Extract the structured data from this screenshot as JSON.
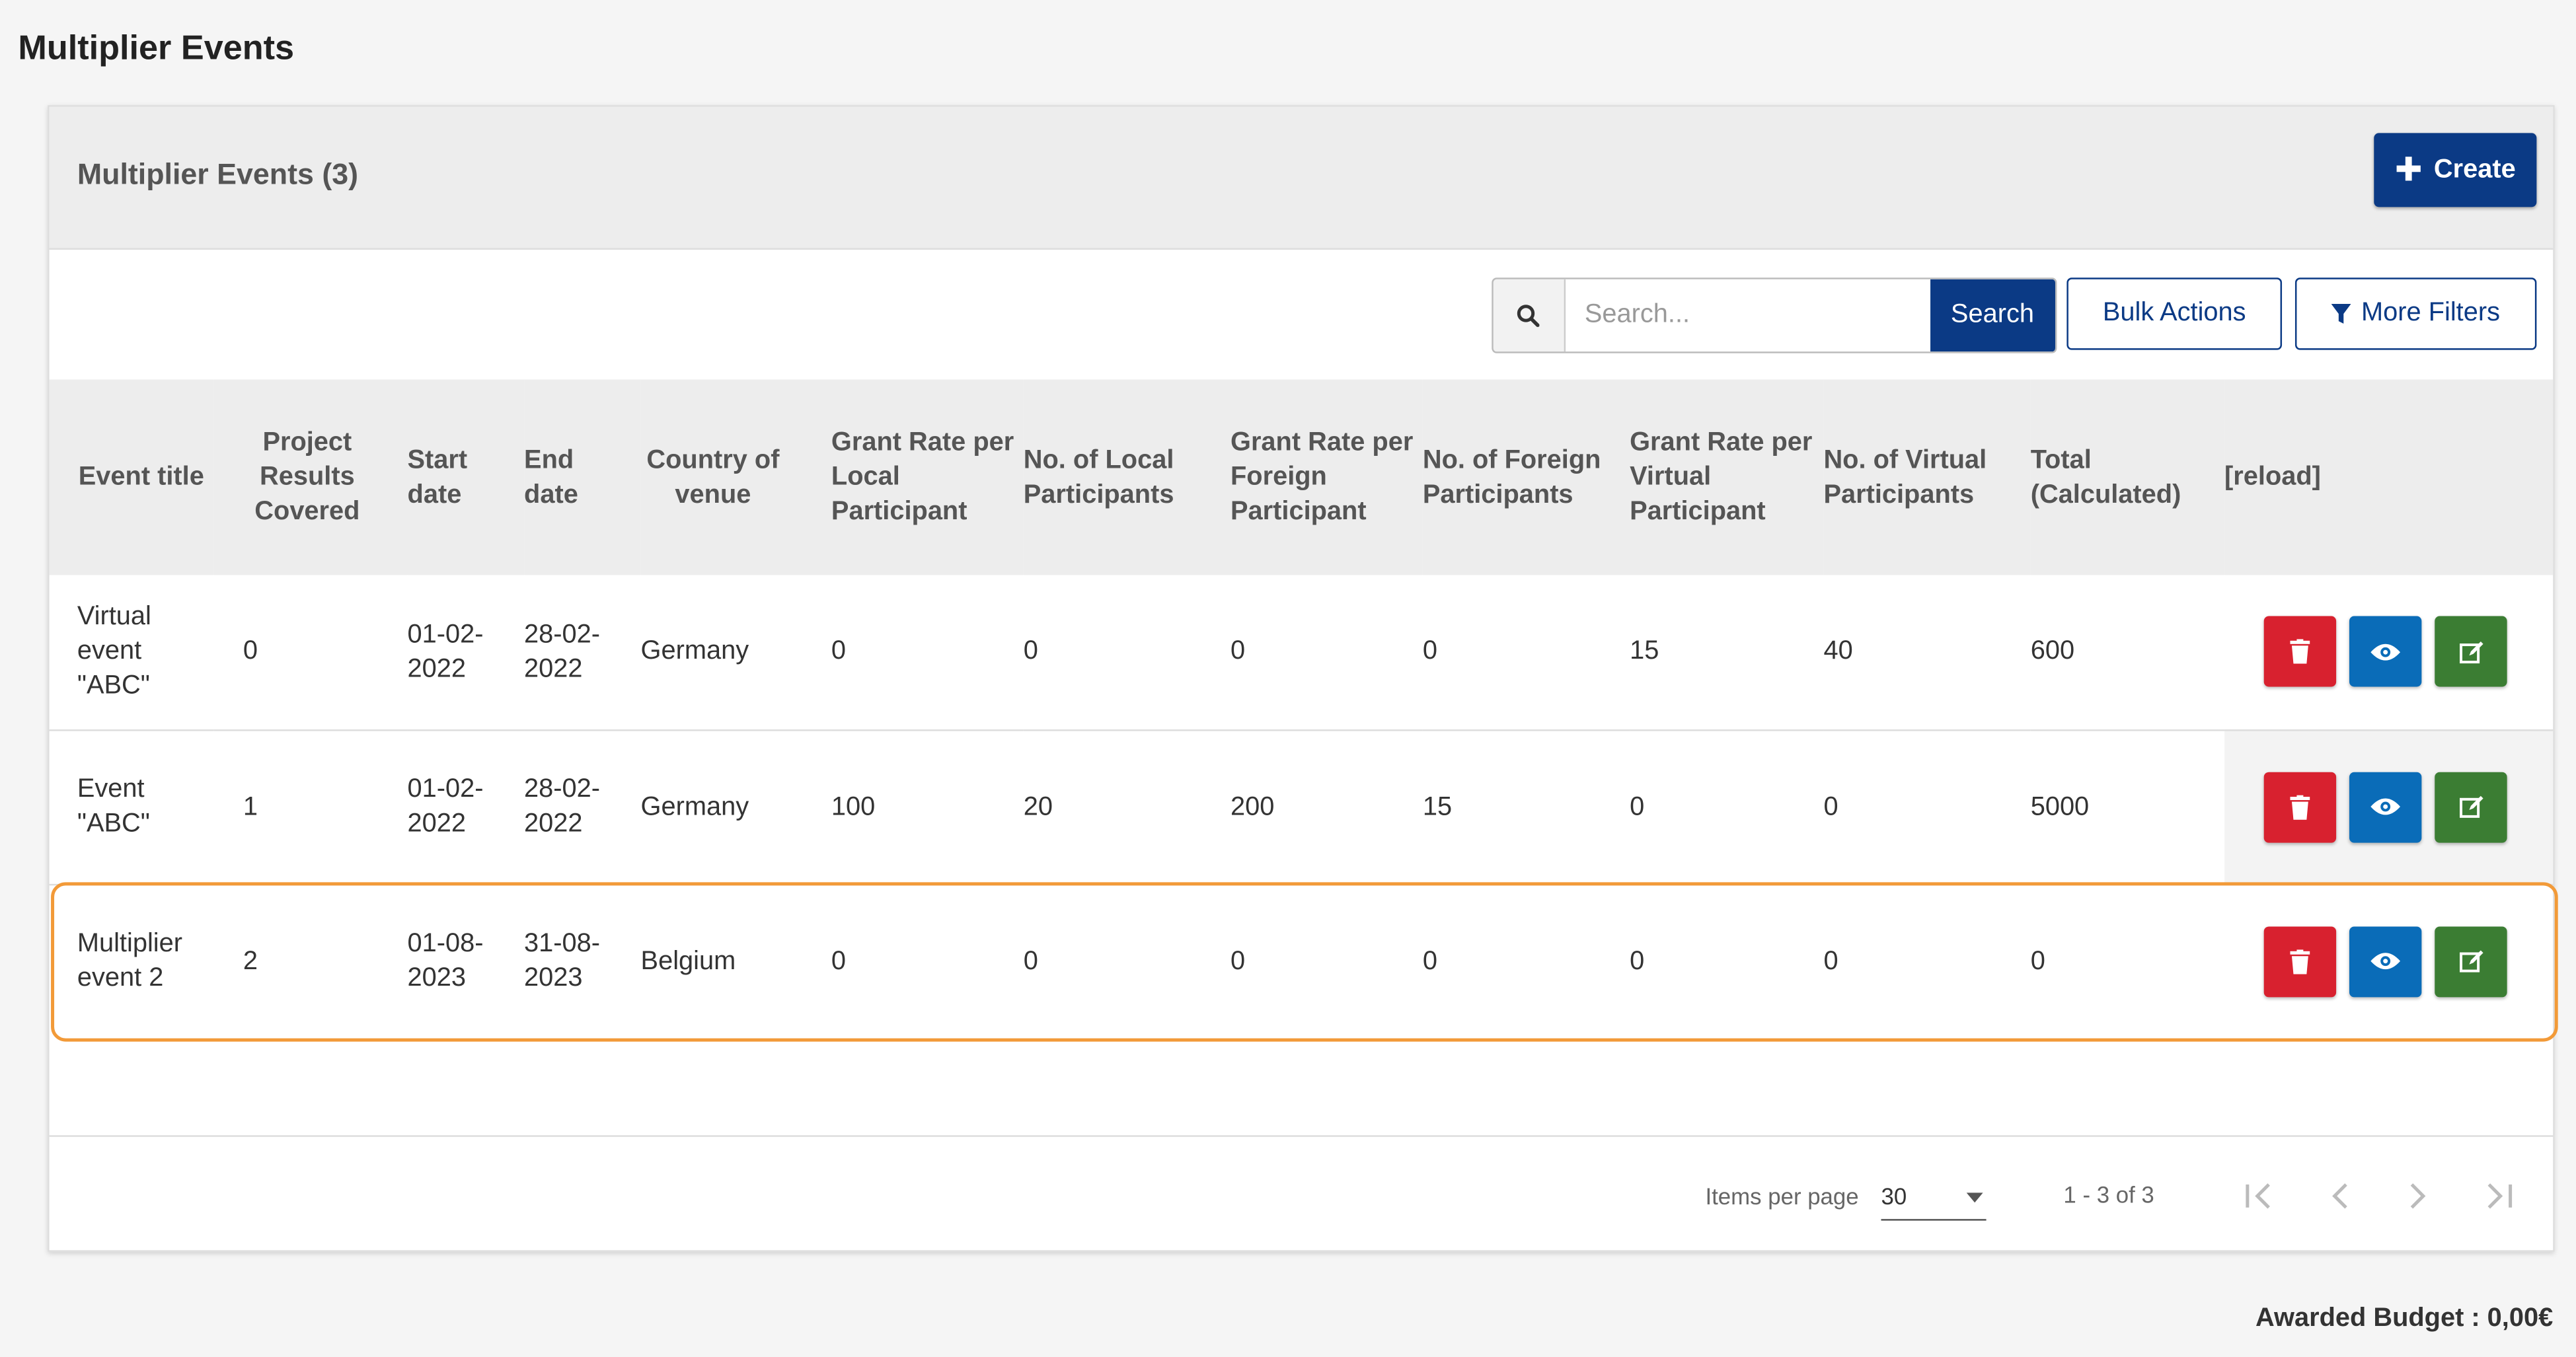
{
  "page": {
    "title": "Multiplier Events"
  },
  "panel": {
    "title": "Multiplier Events (3)",
    "create_label": "Create"
  },
  "toolbar": {
    "search_placeholder": "Search...",
    "search_button": "Search",
    "bulk_actions": "Bulk Actions",
    "more_filters": "More Filters"
  },
  "table": {
    "headers": {
      "event_title": "Event title",
      "project_results": "Project Results Covered",
      "start_date": "Start date",
      "end_date": "End date",
      "country": "Country of venue",
      "grant_local": "Grant Rate per Local Participant",
      "no_local": "No. of Local Participants",
      "grant_foreign": "Grant Rate per Foreign Participant",
      "no_foreign": "No. of Foreign Participants",
      "grant_virtual": "Grant Rate per Virtual Participant",
      "no_virtual": "No. of Virtual Participants",
      "total": "Total (Calculated)",
      "reload": "[reload]"
    },
    "rows": [
      {
        "event_title": "Virtual event \"ABC\"",
        "project_results": "0",
        "start_date": "01-02-2022",
        "end_date": "28-02-2022",
        "country": "Germany",
        "grant_local": "0",
        "no_local": "0",
        "grant_foreign": "0",
        "no_foreign": "0",
        "grant_virtual": "15",
        "no_virtual": "40",
        "total": "600"
      },
      {
        "event_title": "Event \"ABC\"",
        "project_results": "1",
        "start_date": "01-02-2022",
        "end_date": "28-02-2022",
        "country": "Germany",
        "grant_local": "100",
        "no_local": "20",
        "grant_foreign": "200",
        "no_foreign": "15",
        "grant_virtual": "0",
        "no_virtual": "0",
        "total": "5000"
      },
      {
        "event_title": "Multiplier event 2",
        "project_results": "2",
        "start_date": "01-08-2023",
        "end_date": "31-08-2023",
        "country": "Belgium",
        "grant_local": "0",
        "no_local": "0",
        "grant_foreign": "0",
        "no_foreign": "0",
        "grant_virtual": "0",
        "no_virtual": "0",
        "total": "0"
      }
    ]
  },
  "pagination": {
    "items_per_page_label": "Items per page",
    "items_per_page_value": "30",
    "range_label": "1 - 3 of 3"
  },
  "footer": {
    "awarded_budget": "Awarded Budget : 0,00€"
  },
  "colors": {
    "primary": "#0b3a85",
    "delete": "#d8212f",
    "view": "#0a6cb8",
    "edit": "#3b7d33",
    "highlight": "#f29a38"
  }
}
